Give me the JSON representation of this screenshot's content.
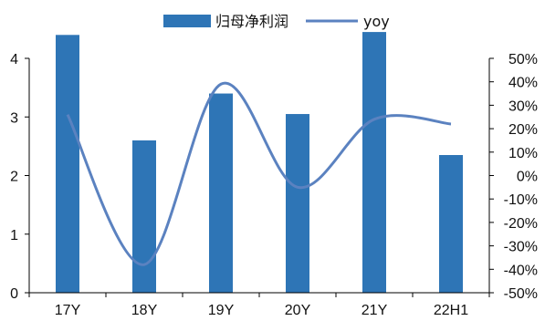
{
  "chart_data": {
    "type": "bar",
    "categories": [
      "17Y",
      "18Y",
      "19Y",
      "20Y",
      "21Y",
      "22H1"
    ],
    "series": [
      {
        "name": "归母净利润",
        "type": "bar",
        "axis": "left",
        "color": "#2e75b6",
        "values": [
          4.4,
          2.6,
          3.4,
          3.05,
          4.45,
          2.35
        ]
      },
      {
        "name": "yoy",
        "type": "line",
        "axis": "right",
        "color": "#5b82c0",
        "values": [
          0.26,
          -0.38,
          0.39,
          -0.05,
          0.24,
          0.22
        ]
      }
    ],
    "y_left": {
      "min": 0,
      "max": 4,
      "ticks": [
        "0",
        "1",
        "2",
        "3",
        "4"
      ]
    },
    "y_right": {
      "min": -0.5,
      "max": 0.5,
      "ticks": [
        "-50%",
        "-40%",
        "-30%",
        "-20%",
        "-10%",
        "0%",
        "10%",
        "20%",
        "30%",
        "40%",
        "50%"
      ]
    },
    "grid": false,
    "legend": "top-center"
  }
}
